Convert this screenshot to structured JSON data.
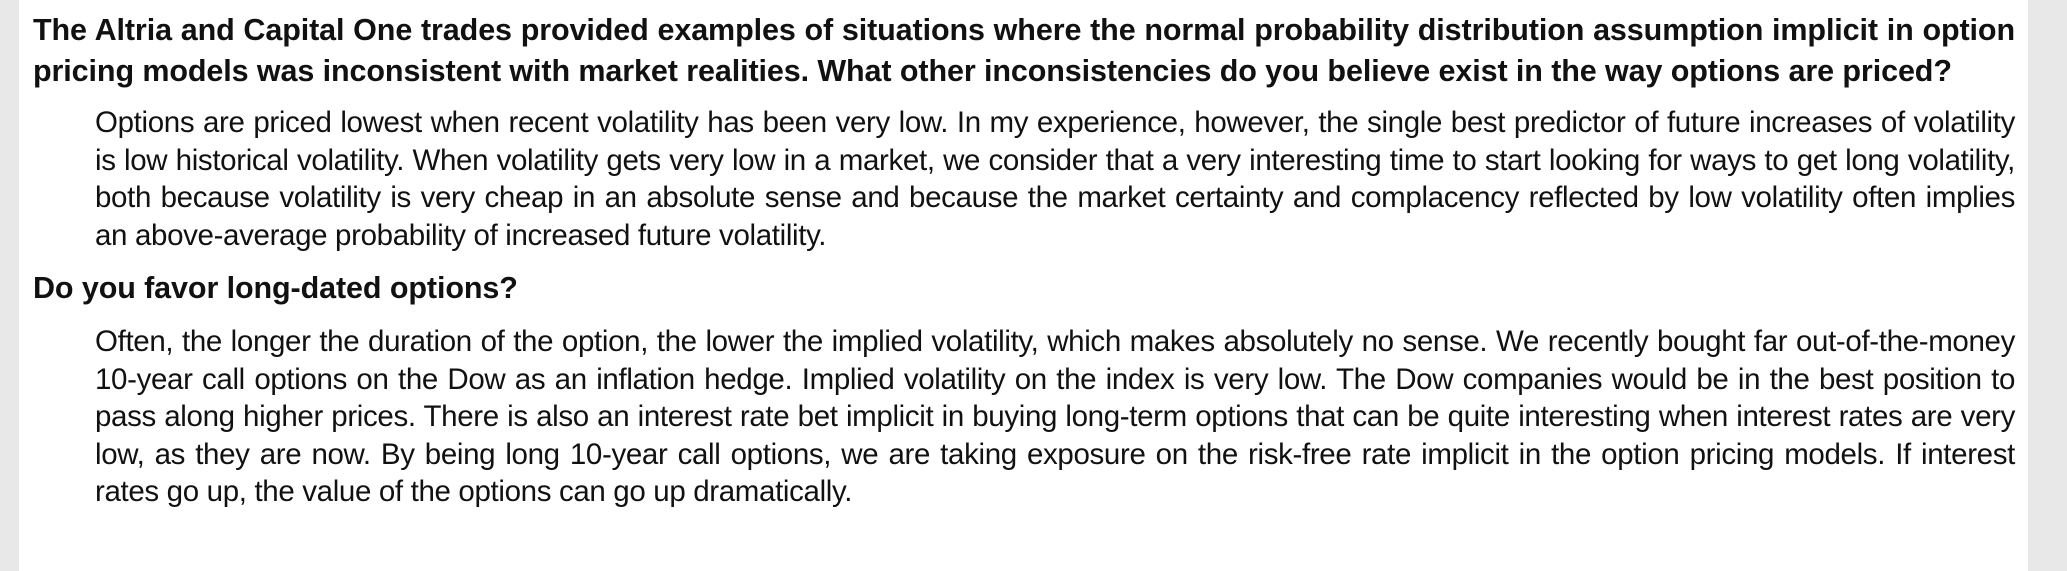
{
  "sections": [
    {
      "question": "The Altria and Capital One trades provided examples of situations where the normal probability distribution assumption implicit in option pricing models was inconsistent with market realities. What other inconsistencies do you believe exist in the way options are priced?",
      "answer": "Options are priced lowest when recent volatility has been very low. In my experience, however, the single best predictor of future increases of volatility is low historical volatility. When volatility gets very low in a market, we consider that a very interesting time to start looking for ways to get long volatility, both because volatility is very cheap in an absolute sense and because the market certainty and complacency reflected by low volatility often implies an above-average probability of increased future volatility."
    },
    {
      "question": "Do you favor long-dated options?",
      "answer": "Often, the longer the duration of the option, the lower the implied volatility, which makes absolutely no sense. We recently bought far out-of-the-money 10-year call options on the Dow as an inflation hedge. Implied volatility on the index is very low. The Dow companies would be in the best position to pass along higher prices. There is also an interest rate bet implicit in buying long-term options that can be quite interesting when interest rates are very low, as they are now. By being long 10-year call options, we are taking exposure on the risk-free rate implicit in the option pricing models. If interest rates go up, the value of the options can go up dramatically."
    }
  ]
}
